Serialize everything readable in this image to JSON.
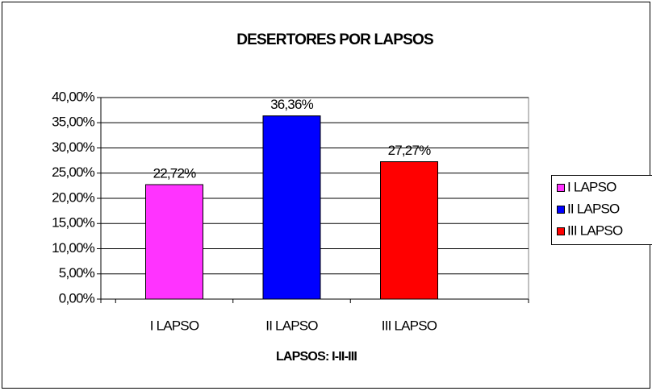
{
  "chart_data": {
    "type": "bar",
    "title": "DESERTORES POR LAPSOS",
    "x_label": "LAPSOS: I-II-III",
    "categories": [
      "I LAPSO",
      "II LAPSO",
      "III LAPSO"
    ],
    "values": [
      22.72,
      36.36,
      27.27
    ],
    "value_labels": [
      "22,72%",
      "36,36%",
      "27,27%"
    ],
    "colors": [
      "#ff33ff",
      "#0000ff",
      "#ff0000"
    ],
    "ylim": [
      0,
      40
    ],
    "yticks": [
      {
        "value": 0,
        "label": "0,00%"
      },
      {
        "value": 5,
        "label": "5,00%"
      },
      {
        "value": 10,
        "label": "10,00%"
      },
      {
        "value": 15,
        "label": "15,00%"
      },
      {
        "value": 20,
        "label": "20,00%"
      },
      {
        "value": 25,
        "label": "25,00%"
      },
      {
        "value": 30,
        "label": "30,00%"
      },
      {
        "value": 35,
        "label": "35,00%"
      },
      {
        "value": 40,
        "label": "40,00%"
      }
    ],
    "grid": true,
    "legend": "right"
  }
}
